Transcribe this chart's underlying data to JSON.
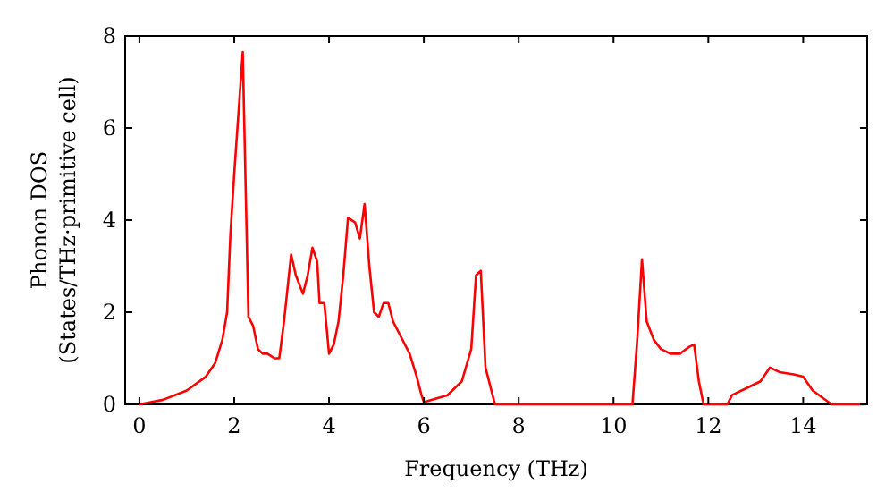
{
  "chart_data": {
    "type": "line",
    "xlabel": "Frequency (THz)",
    "ylabel": "Phonon DOS\n(States/THz·primitive cell)",
    "xlim": [
      -0.3,
      15.35
    ],
    "xticks": [
      0,
      2,
      4,
      6,
      8,
      10,
      12,
      14
    ],
    "ylim": [
      0,
      8
    ],
    "yticks": [
      0,
      2,
      4,
      6,
      8
    ],
    "grid": false,
    "series": [
      {
        "color": "#ff0000",
        "x": [
          0,
          0.5,
          1,
          1.4,
          1.6,
          1.75,
          1.85,
          1.92,
          2.0,
          2.18,
          2.3,
          2.4,
          2.5,
          2.6,
          2.7,
          2.85,
          2.95,
          3.05,
          3.2,
          3.3,
          3.45,
          3.55,
          3.65,
          3.75,
          3.8,
          3.9,
          4.0,
          4.1,
          4.2,
          4.3,
          4.4,
          4.55,
          4.65,
          4.75,
          4.85,
          4.95,
          5.05,
          5.15,
          5.25,
          5.35,
          5.5,
          5.7,
          5.85,
          5.95,
          6.0,
          6.5,
          6.8,
          7.0,
          7.1,
          7.2,
          7.3,
          7.4,
          7.5,
          10.4,
          10.5,
          10.6,
          10.7,
          10.85,
          11.0,
          11.2,
          11.4,
          11.6,
          11.7,
          11.8,
          11.9,
          12.4,
          12.5,
          12.8,
          13.1,
          13.3,
          13.5,
          13.8,
          14.0,
          14.2,
          14.6,
          15.3
        ],
        "values": [
          0,
          0.1,
          0.3,
          0.6,
          0.9,
          1.4,
          2.0,
          3.7,
          5.0,
          7.65,
          1.9,
          1.7,
          1.2,
          1.1,
          1.1,
          1.0,
          1.0,
          1.8,
          3.25,
          2.8,
          2.4,
          2.8,
          3.4,
          3.1,
          2.2,
          2.2,
          1.1,
          1.3,
          1.8,
          2.8,
          4.05,
          3.95,
          3.6,
          4.35,
          3.0,
          2.0,
          1.9,
          2.2,
          2.2,
          1.8,
          1.5,
          1.1,
          0.6,
          0.2,
          0.05,
          0.2,
          0.5,
          1.2,
          2.8,
          2.9,
          0.8,
          0.4,
          0,
          0,
          1.4,
          3.15,
          1.8,
          1.4,
          1.2,
          1.1,
          1.1,
          1.25,
          1.3,
          0.5,
          0,
          0,
          0.2,
          0.35,
          0.5,
          0.8,
          0.7,
          0.65,
          0.6,
          0.3,
          0,
          0
        ]
      }
    ]
  }
}
